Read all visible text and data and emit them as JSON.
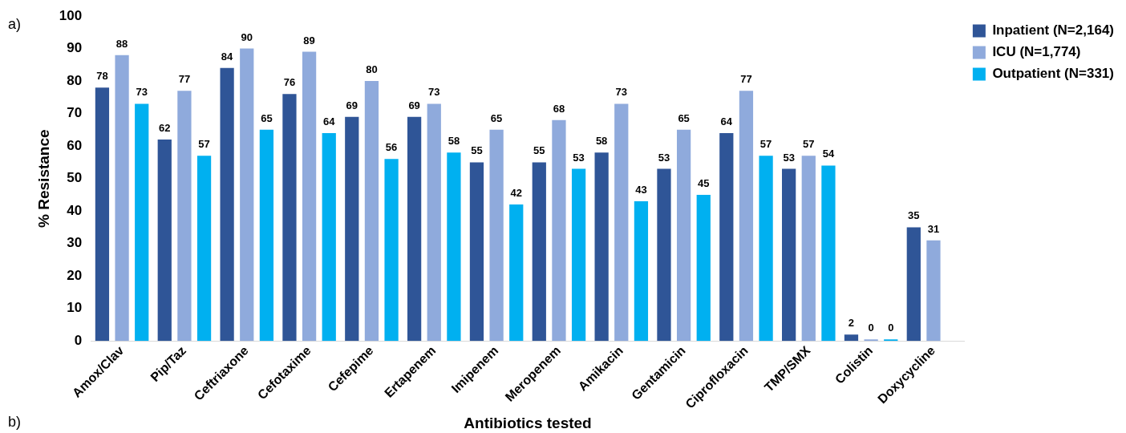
{
  "chart_data": {
    "type": "bar",
    "xlabel": "Antibiotics tested",
    "ylabel": "% Resistance",
    "categories": [
      "Amox/Clav",
      "Pip/Taz",
      "Ceftriaxone",
      "Cefotaxime",
      "Cefepime",
      "Ertapenem",
      "Imipenem",
      "Meropenem",
      "Amikacin",
      "Gentamicin",
      "Ciprofloxacin",
      "TMP/SMX",
      "Colistin",
      "Doxycycline"
    ],
    "series": [
      {
        "name": "Inpatient (N=2,164)",
        "color": "#2f5597",
        "values": [
          78,
          62,
          84,
          76,
          69,
          69,
          55,
          55,
          58,
          53,
          64,
          53,
          2,
          35
        ]
      },
      {
        "name": "ICU (N=1,774)",
        "color": "#8faadc",
        "values": [
          88,
          77,
          90,
          89,
          80,
          73,
          65,
          68,
          73,
          65,
          77,
          57,
          0,
          31
        ]
      },
      {
        "name": "Outpatient (N=331)",
        "color": "#00b0f0",
        "values": [
          73,
          57,
          65,
          64,
          56,
          58,
          42,
          53,
          43,
          45,
          57,
          54,
          0,
          null
        ]
      }
    ],
    "ylim": [
      0,
      100
    ],
    "yticks": [
      0,
      10,
      20,
      30,
      40,
      50,
      60,
      70,
      80,
      90,
      100
    ],
    "grid": false,
    "legend": "top right",
    "data_labels": true,
    "annotations": [
      "a)",
      "b)"
    ]
  }
}
